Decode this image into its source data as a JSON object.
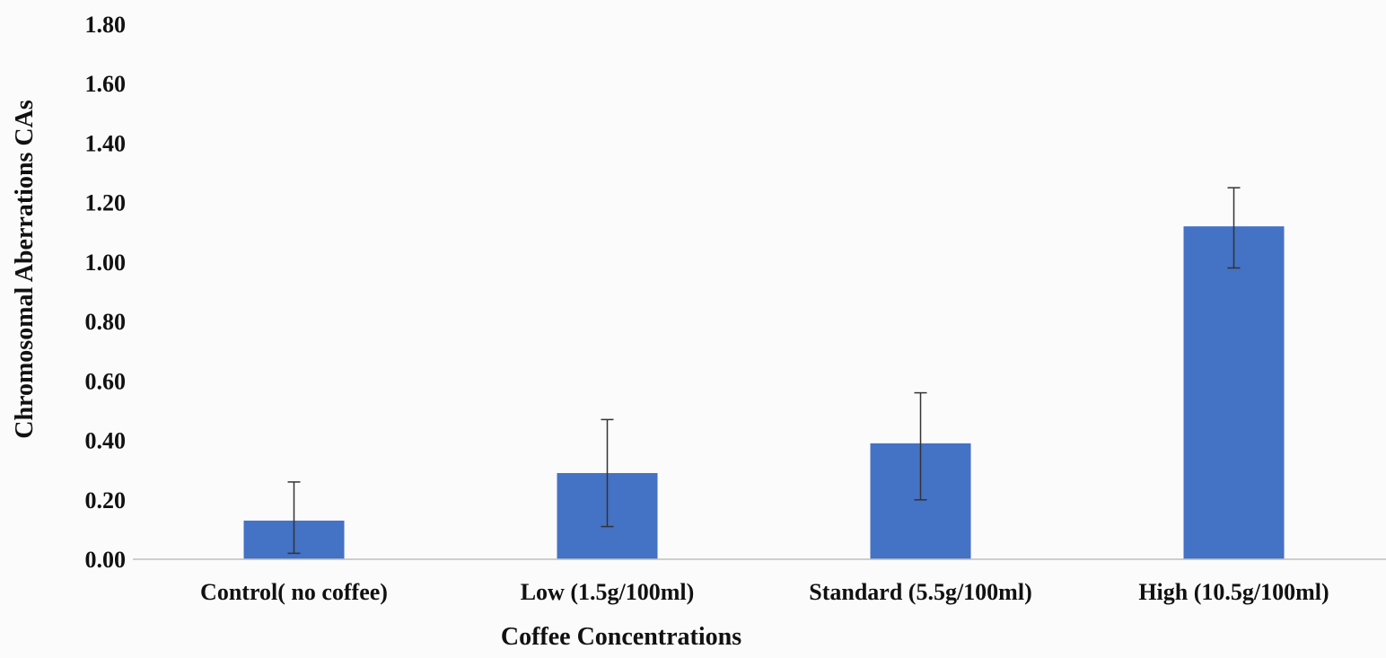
{
  "chart_data": {
    "type": "bar",
    "title": "",
    "xlabel": "Coffee Concentrations",
    "ylabel": "Chromosomal Aberrations CAs",
    "categories": [
      "Control( no coffee)",
      "Low (1.5g/100ml)",
      "Standard (5.5g/100ml)",
      "High (10.5g/100ml)"
    ],
    "series": [
      {
        "values": [
          0.13,
          0.29,
          0.39,
          1.12
        ],
        "error_low": [
          0.02,
          0.11,
          0.2,
          0.98
        ],
        "error_high": [
          0.26,
          0.47,
          0.56,
          1.25
        ]
      }
    ],
    "ylim": [
      0,
      1.8
    ],
    "yticks": [
      "0.00",
      "0.20",
      "0.40",
      "0.60",
      "0.80",
      "1.00",
      "1.20",
      "1.40",
      "1.60",
      "1.80"
    ],
    "ytick_values": [
      0,
      0.2,
      0.4,
      0.6,
      0.8,
      1.0,
      1.2,
      1.4,
      1.6,
      1.8
    ],
    "grid": false,
    "legend": "none",
    "colors": {
      "bar": "#4472c4",
      "error_bar": "#333333",
      "axis": "#bfbfbf",
      "text": "#111111",
      "background": "#fbfbfb"
    }
  }
}
